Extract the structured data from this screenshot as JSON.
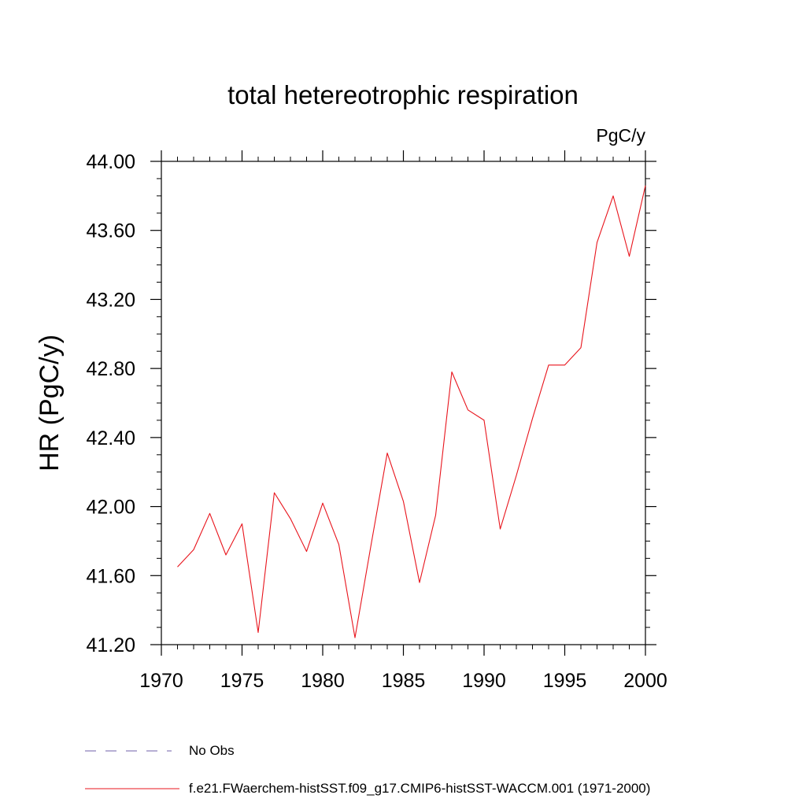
{
  "chart_data": {
    "type": "line",
    "title": "total hetereotrophic respiration",
    "units": "PgC/y",
    "ylabel": "HR  (PgC/y)",
    "xlabel": "",
    "xlim": [
      1970,
      2000
    ],
    "ylim": [
      41.2,
      44.0
    ],
    "xticks": [
      1970,
      1975,
      1980,
      1985,
      1990,
      1995,
      2000
    ],
    "xtick_labels": [
      "1970",
      "1975",
      "1980",
      "1985",
      "1990",
      "1995",
      "2000"
    ],
    "yticks": [
      41.2,
      41.6,
      42.0,
      42.4,
      42.8,
      43.2,
      43.6,
      44.0
    ],
    "ytick_labels": [
      "41.20",
      "41.60",
      "42.00",
      "42.40",
      "42.80",
      "43.20",
      "43.60",
      "44.00"
    ],
    "grid": false,
    "legend_position": "bottom",
    "series": [
      {
        "name": "f.e21.FWaerchem-histSST.f09_g17.CMIP6-histSST-WACCM.001 (1971-2000)",
        "color": "#e8141c",
        "style": "solid",
        "x": [
          1971,
          1972,
          1973,
          1974,
          1975,
          1976,
          1977,
          1978,
          1979,
          1980,
          1981,
          1982,
          1983,
          1984,
          1985,
          1986,
          1987,
          1988,
          1989,
          1990,
          1991,
          1992,
          1993,
          1994,
          1995,
          1996,
          1997,
          1998,
          1999,
          2000
        ],
        "y": [
          41.65,
          41.75,
          41.96,
          41.72,
          41.9,
          41.27,
          42.08,
          41.93,
          41.74,
          42.02,
          41.78,
          41.24,
          41.78,
          42.31,
          42.03,
          41.56,
          41.95,
          42.78,
          42.56,
          42.5,
          41.87,
          42.18,
          42.51,
          42.82,
          42.82,
          42.92,
          43.53,
          43.8,
          43.45,
          43.86
        ]
      }
    ],
    "legend": [
      {
        "label": "No Obs",
        "color": "#6f5fa8",
        "style": "dashed"
      },
      {
        "label": "f.e21.FWaerchem-histSST.f09_g17.CMIP6-histSST-WACCM.001 (1971-2000)",
        "color": "#e8141c",
        "style": "solid"
      }
    ]
  }
}
